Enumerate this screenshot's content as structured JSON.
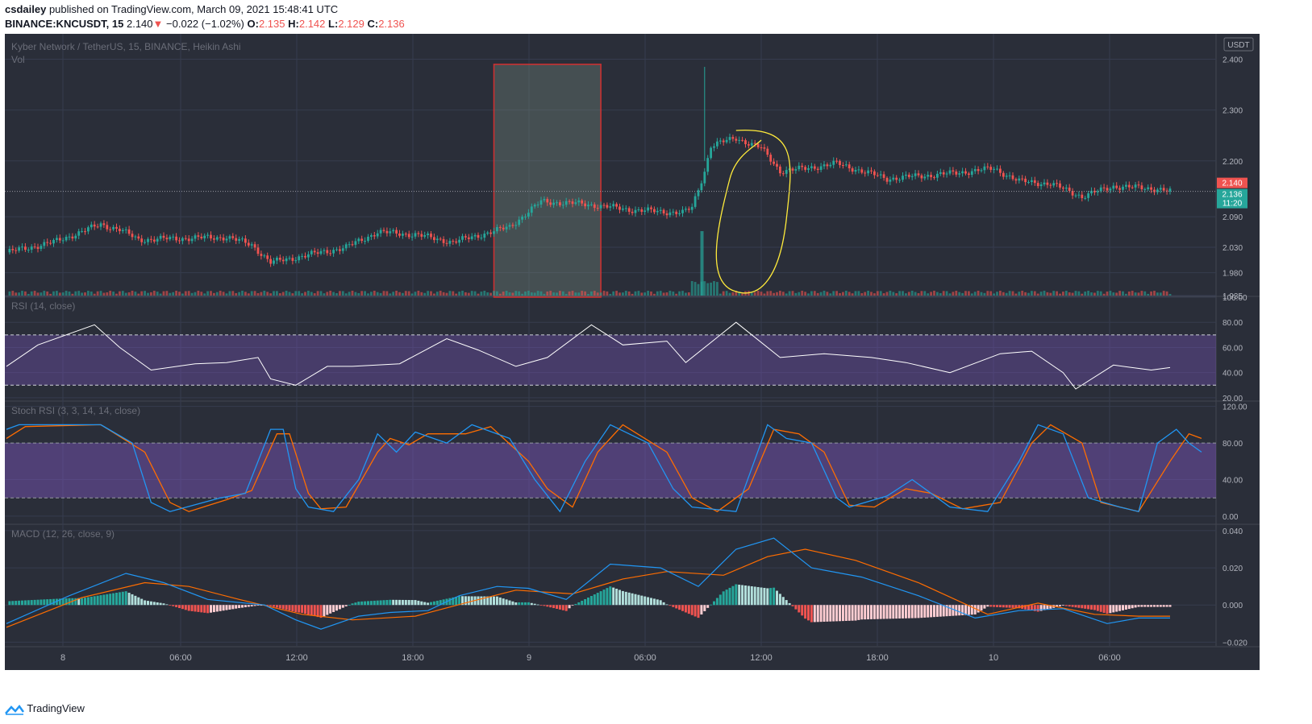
{
  "header": {
    "publisher": "csdailey",
    "published_text": "published on TradingView.com, March 09, 2021 15:48:41 UTC",
    "symbol": "BINANCE:KNCUSDT, 15",
    "last": "2.140",
    "change_arrow": "▼",
    "change": "−0.022 (−1.02%)",
    "o_label": "O:",
    "o": "2.135",
    "h_label": "H:",
    "h": "2.142",
    "l_label": "L:",
    "l": "2.129",
    "c_label": "C:",
    "c": "2.136"
  },
  "footer": {
    "brand": "TradingView"
  },
  "colors": {
    "bg": "#2a2e39",
    "grid": "#363c4e",
    "up": "#26a69a",
    "down": "#ef5350",
    "rsi": "#ffffff",
    "band": "#7e57c2",
    "stoch_k": "#2196f3",
    "stoch_d": "#ff6d00",
    "macd": "#2196f3",
    "signal": "#ff6d00",
    "highlight_box": "#d32f2f",
    "circle": "#ffeb3b"
  },
  "chart_data": [
    {
      "type": "candlestick",
      "title": "Kyber Network / TetherUS, 15, BINANCE, Heikin Ashi",
      "subtitle": "Vol",
      "currency": "USDT",
      "y_ticks": [
        "2.400",
        "2.300",
        "2.200",
        "2.090",
        "2.030",
        "1.980",
        "1.935"
      ],
      "ylim": [
        1.935,
        2.45
      ],
      "last_price": "2.140",
      "close_badge": "2.136",
      "countdown": "11:20",
      "x_tick_labels": [
        "8",
        "06:00",
        "12:00",
        "18:00",
        "9",
        "06:00",
        "12:00",
        "18:00",
        "10",
        "06:00"
      ],
      "anchors": [
        [
          0,
          2.02
        ],
        [
          15,
          2.04
        ],
        [
          30,
          2.075
        ],
        [
          36,
          2.065
        ],
        [
          42,
          2.045
        ],
        [
          58,
          2.048
        ],
        [
          70,
          2.05
        ],
        [
          78,
          2.035
        ],
        [
          84,
          2.0
        ],
        [
          96,
          2.015
        ],
        [
          108,
          2.03
        ],
        [
          118,
          2.06
        ],
        [
          130,
          2.055
        ],
        [
          142,
          2.04
        ],
        [
          160,
          2.07
        ],
        [
          170,
          2.12
        ],
        [
          184,
          2.115
        ],
        [
          200,
          2.103
        ],
        [
          215,
          2.098
        ],
        [
          218,
          2.108
        ],
        [
          222,
          2.18
        ],
        [
          224,
          2.23
        ],
        [
          232,
          2.245
        ],
        [
          240,
          2.225
        ],
        [
          246,
          2.18
        ],
        [
          254,
          2.185
        ],
        [
          264,
          2.195
        ],
        [
          280,
          2.165
        ],
        [
          300,
          2.175
        ],
        [
          314,
          2.185
        ],
        [
          322,
          2.16
        ],
        [
          332,
          2.155
        ],
        [
          342,
          2.13
        ],
        [
          352,
          2.15
        ],
        [
          366,
          2.145
        ],
        [
          370,
          2.14
        ]
      ],
      "volume_spike": 2.385
    },
    {
      "type": "line",
      "title": "RSI (14, close)",
      "y_ticks": [
        "100.00",
        "80.00",
        "60.00",
        "40.00",
        "20.00"
      ],
      "ylim": [
        18,
        100
      ],
      "bands": [
        30,
        70
      ],
      "points": [
        [
          0,
          45
        ],
        [
          10,
          62
        ],
        [
          28,
          78
        ],
        [
          36,
          60
        ],
        [
          46,
          42
        ],
        [
          60,
          47
        ],
        [
          70,
          48
        ],
        [
          80,
          52
        ],
        [
          84,
          35
        ],
        [
          92,
          30
        ],
        [
          102,
          45
        ],
        [
          110,
          45
        ],
        [
          125,
          47
        ],
        [
          140,
          67
        ],
        [
          150,
          58
        ],
        [
          162,
          45
        ],
        [
          172,
          52
        ],
        [
          186,
          78
        ],
        [
          196,
          62
        ],
        [
          210,
          65
        ],
        [
          216,
          48
        ],
        [
          232,
          80
        ],
        [
          246,
          52
        ],
        [
          260,
          55
        ],
        [
          275,
          52
        ],
        [
          286,
          48
        ],
        [
          300,
          40
        ],
        [
          316,
          55
        ],
        [
          326,
          57
        ],
        [
          336,
          40
        ],
        [
          340,
          27
        ],
        [
          352,
          46
        ],
        [
          364,
          42
        ],
        [
          370,
          44
        ]
      ]
    },
    {
      "type": "line",
      "title": "Stoch RSI (3, 3, 14, 14, close)",
      "y_ticks": [
        "120.00",
        "80.00",
        "40.00",
        "0.00"
      ],
      "ylim": [
        -8,
        125
      ],
      "bands": [
        20,
        80
      ],
      "k": [
        [
          0,
          95
        ],
        [
          4,
          100
        ],
        [
          30,
          100
        ],
        [
          40,
          80
        ],
        [
          46,
          15
        ],
        [
          52,
          5
        ],
        [
          68,
          20
        ],
        [
          76,
          25
        ],
        [
          84,
          95
        ],
        [
          88,
          95
        ],
        [
          92,
          30
        ],
        [
          96,
          10
        ],
        [
          104,
          5
        ],
        [
          112,
          40
        ],
        [
          118,
          90
        ],
        [
          124,
          70
        ],
        [
          130,
          92
        ],
        [
          140,
          80
        ],
        [
          148,
          100
        ],
        [
          160,
          85
        ],
        [
          168,
          40
        ],
        [
          176,
          5
        ],
        [
          184,
          60
        ],
        [
          192,
          100
        ],
        [
          204,
          80
        ],
        [
          212,
          30
        ],
        [
          218,
          10
        ],
        [
          232,
          5
        ],
        [
          242,
          100
        ],
        [
          248,
          85
        ],
        [
          256,
          80
        ],
        [
          264,
          20
        ],
        [
          268,
          10
        ],
        [
          280,
          22
        ],
        [
          288,
          40
        ],
        [
          300,
          10
        ],
        [
          312,
          5
        ],
        [
          322,
          60
        ],
        [
          328,
          100
        ],
        [
          336,
          90
        ],
        [
          344,
          20
        ],
        [
          354,
          10
        ],
        [
          360,
          5
        ],
        [
          366,
          80
        ],
        [
          372,
          95
        ],
        [
          376,
          80
        ],
        [
          380,
          70
        ]
      ],
      "d": [
        [
          0,
          85
        ],
        [
          6,
          98
        ],
        [
          30,
          100
        ],
        [
          44,
          70
        ],
        [
          52,
          15
        ],
        [
          58,
          5
        ],
        [
          70,
          18
        ],
        [
          78,
          28
        ],
        [
          86,
          90
        ],
        [
          90,
          90
        ],
        [
          96,
          25
        ],
        [
          100,
          8
        ],
        [
          108,
          10
        ],
        [
          118,
          70
        ],
        [
          122,
          85
        ],
        [
          128,
          78
        ],
        [
          134,
          90
        ],
        [
          146,
          90
        ],
        [
          154,
          98
        ],
        [
          166,
          60
        ],
        [
          172,
          30
        ],
        [
          180,
          10
        ],
        [
          188,
          70
        ],
        [
          196,
          100
        ],
        [
          210,
          70
        ],
        [
          218,
          20
        ],
        [
          226,
          5
        ],
        [
          236,
          30
        ],
        [
          244,
          95
        ],
        [
          252,
          90
        ],
        [
          260,
          70
        ],
        [
          268,
          12
        ],
        [
          276,
          10
        ],
        [
          286,
          30
        ],
        [
          294,
          25
        ],
        [
          304,
          8
        ],
        [
          316,
          15
        ],
        [
          326,
          80
        ],
        [
          332,
          100
        ],
        [
          342,
          80
        ],
        [
          348,
          15
        ],
        [
          360,
          5
        ],
        [
          370,
          60
        ],
        [
          376,
          90
        ],
        [
          380,
          85
        ]
      ]
    },
    {
      "type": "line",
      "title": "MACD (12, 26, close, 9)",
      "y_ticks": [
        "0.040",
        "0.020",
        "0.000",
        "−0.020"
      ],
      "ylim": [
        -0.022,
        0.043
      ],
      "macd_line": [
        [
          0,
          -0.01
        ],
        [
          20,
          0.005
        ],
        [
          38,
          0.017
        ],
        [
          50,
          0.012
        ],
        [
          64,
          0.003
        ],
        [
          82,
          0.0
        ],
        [
          92,
          -0.008
        ],
        [
          100,
          -0.013
        ],
        [
          112,
          -0.006
        ],
        [
          122,
          -0.004
        ],
        [
          134,
          -0.003
        ],
        [
          144,
          0.005
        ],
        [
          156,
          0.01
        ],
        [
          166,
          0.009
        ],
        [
          178,
          0.003
        ],
        [
          192,
          0.022
        ],
        [
          208,
          0.02
        ],
        [
          220,
          0.01
        ],
        [
          232,
          0.03
        ],
        [
          244,
          0.036
        ],
        [
          256,
          0.02
        ],
        [
          272,
          0.015
        ],
        [
          290,
          0.005
        ],
        [
          308,
          -0.007
        ],
        [
          322,
          -0.003
        ],
        [
          336,
          -0.002
        ],
        [
          350,
          -0.01
        ],
        [
          360,
          -0.007
        ],
        [
          370,
          -0.007
        ]
      ],
      "signal_line": [
        [
          0,
          -0.012
        ],
        [
          24,
          0.004
        ],
        [
          44,
          0.012
        ],
        [
          58,
          0.01
        ],
        [
          74,
          0.003
        ],
        [
          94,
          -0.005
        ],
        [
          110,
          -0.008
        ],
        [
          130,
          -0.006
        ],
        [
          148,
          0.002
        ],
        [
          162,
          0.008
        ],
        [
          180,
          0.006
        ],
        [
          196,
          0.014
        ],
        [
          210,
          0.018
        ],
        [
          228,
          0.016
        ],
        [
          242,
          0.026
        ],
        [
          254,
          0.03
        ],
        [
          270,
          0.024
        ],
        [
          290,
          0.012
        ],
        [
          312,
          -0.005
        ],
        [
          328,
          0.001
        ],
        [
          346,
          -0.005
        ],
        [
          360,
          -0.006
        ],
        [
          370,
          -0.006
        ]
      ]
    }
  ]
}
